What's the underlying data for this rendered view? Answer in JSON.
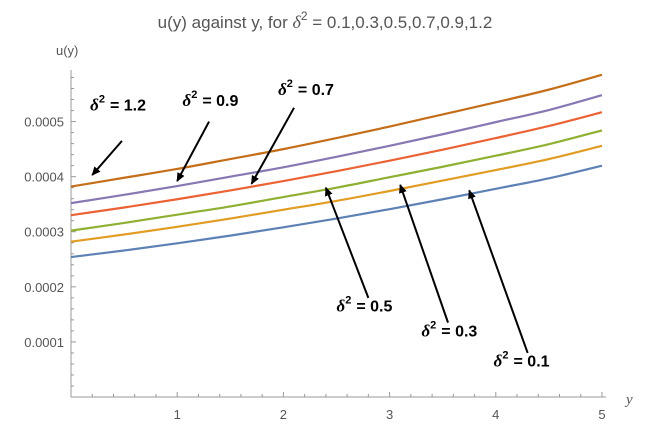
{
  "chart_data": {
    "type": "line",
    "title": {
      "prefix": "u(y) against  y, for ",
      "delta_symbol": "δ",
      "superscript": "2",
      "suffix": " = 0.1,0.3,0.5,0.7,0.9,1.2"
    },
    "xlabel": "y",
    "ylabel": "u(y)",
    "xlim": [
      0,
      5
    ],
    "ylim": [
      0,
      0.00059
    ],
    "x_ticks": [
      {
        "value": 1,
        "label": "1"
      },
      {
        "value": 2,
        "label": "2"
      },
      {
        "value": 3,
        "label": "3"
      },
      {
        "value": 4,
        "label": "4"
      },
      {
        "value": 5,
        "label": "5"
      }
    ],
    "y_ticks": [
      {
        "value": 0.0001,
        "label": "0.0001"
      },
      {
        "value": 0.0002,
        "label": "0.0002"
      },
      {
        "value": 0.0003,
        "label": "0.0003"
      },
      {
        "value": 0.0004,
        "label": "0.0004"
      },
      {
        "value": 0.0005,
        "label": "0.0005"
      }
    ],
    "grid": false,
    "x": [
      0,
      0.5,
      1,
      1.5,
      2,
      2.5,
      3,
      3.5,
      4,
      4.5,
      5
    ],
    "series": [
      {
        "delta_sq": "0.1",
        "color": "#5E81B5",
        "values": [
          0.000254,
          0.000266,
          0.000279,
          0.000293,
          0.000308,
          0.000324,
          0.000341,
          0.000359,
          0.000378,
          0.000397,
          0.00042
        ]
      },
      {
        "delta_sq": "0.3",
        "color": "#E19C24",
        "values": [
          0.000282,
          0.000295,
          0.000309,
          0.000324,
          0.00034,
          0.000356,
          0.000374,
          0.000393,
          0.000412,
          0.000432,
          0.000456
        ]
      },
      {
        "delta_sq": "0.5",
        "color": "#8FB032",
        "values": [
          0.000302,
          0.000316,
          0.000331,
          0.000346,
          0.000363,
          0.00038,
          0.000399,
          0.000418,
          0.000438,
          0.000459,
          0.000484
        ]
      },
      {
        "delta_sq": "0.7",
        "color": "#EB6235",
        "values": [
          0.00033,
          0.000344,
          0.000359,
          0.000375,
          0.000392,
          0.00041,
          0.000429,
          0.000449,
          0.00047,
          0.000492,
          0.000517
        ]
      },
      {
        "delta_sq": "0.9",
        "color": "#8778B3",
        "values": [
          0.000352,
          0.000367,
          0.000383,
          0.0004,
          0.000417,
          0.000436,
          0.000456,
          0.000477,
          0.000499,
          0.000521,
          0.000548
        ]
      },
      {
        "delta_sq": "1.2",
        "color": "#C56E1A",
        "values": [
          0.000382,
          0.000398,
          0.000414,
          0.000432,
          0.00045,
          0.00047,
          0.000491,
          0.000513,
          0.000535,
          0.000558,
          0.000585
        ]
      }
    ],
    "annotations": [
      {
        "delta_symbol": "δ",
        "superscript": "2",
        "text": "= 1.2",
        "label_at": [
          0.18,
          0.00052
        ],
        "arrow_from": [
          0.48,
          0.000465
        ],
        "arrow_to": [
          0.2,
          0.000403
        ]
      },
      {
        "delta_symbol": "δ",
        "superscript": "2",
        "text": "= 0.9",
        "label_at": [
          1.05,
          0.000528
        ],
        "arrow_from": [
          1.3,
          0.0005
        ],
        "arrow_to": [
          1.0,
          0.000392
        ]
      },
      {
        "delta_symbol": "δ",
        "superscript": "2",
        "text": "= 0.7",
        "label_at": [
          1.95,
          0.000548
        ],
        "arrow_from": [
          2.1,
          0.000525
        ],
        "arrow_to": [
          1.7,
          0.000387
        ]
      },
      {
        "delta_symbol": "δ",
        "superscript": "2",
        "text": "= 0.5",
        "label_at": [
          2.5,
          0.000155
        ],
        "arrow_from": [
          2.8,
          0.00018
        ],
        "arrow_to": [
          2.4,
          0.00038
        ]
      },
      {
        "delta_symbol": "δ",
        "superscript": "2",
        "text": "= 0.3",
        "label_at": [
          3.3,
          0.00011
        ],
        "arrow_from": [
          3.55,
          0.000135
        ],
        "arrow_to": [
          3.1,
          0.000385
        ]
      },
      {
        "delta_symbol": "δ",
        "superscript": "2",
        "text": "= 0.1",
        "label_at": [
          3.98,
          5.5e-05
        ],
        "arrow_from": [
          4.3,
          8e-05
        ],
        "arrow_to": [
          3.75,
          0.000375
        ]
      }
    ]
  }
}
